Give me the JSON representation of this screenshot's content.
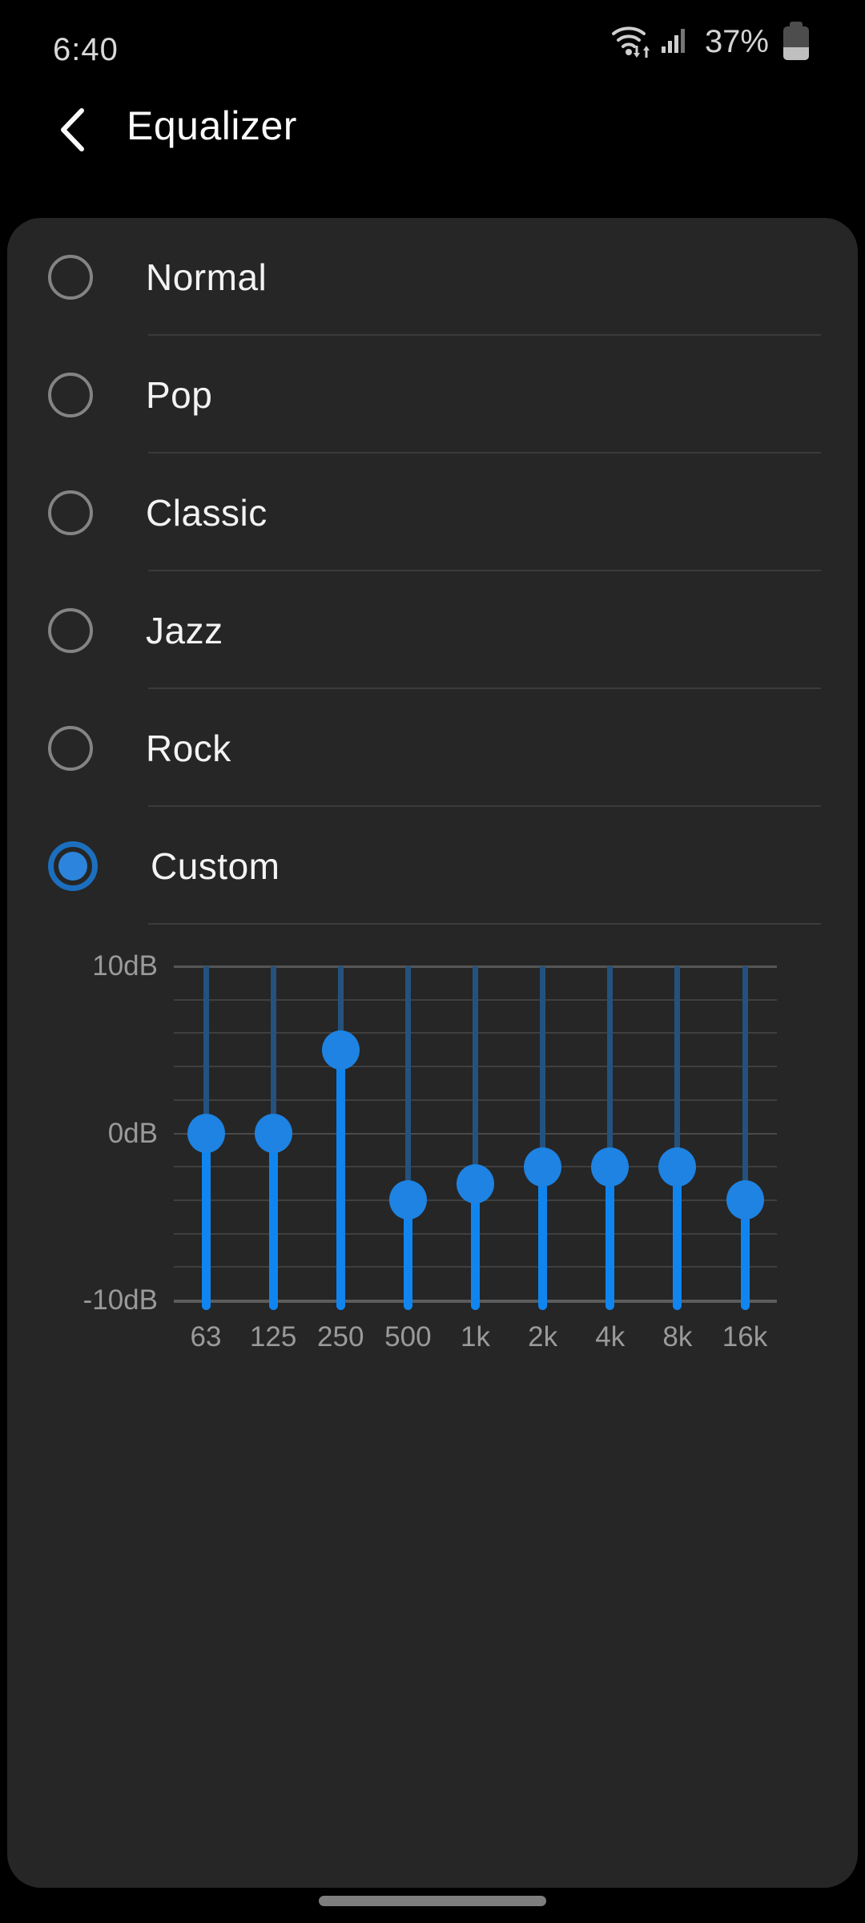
{
  "status_bar": {
    "time": "6:40",
    "battery_text": "37%",
    "battery_level": 0.37,
    "icons": {
      "wifi": "wifi-with-updown-arrows",
      "signal": "cell-signal-bars",
      "battery": "battery-vertical"
    }
  },
  "header": {
    "title": "Equalizer",
    "back_icon": "chevron-left"
  },
  "presets": {
    "items": [
      {
        "label": "Normal",
        "selected": false
      },
      {
        "label": "Pop",
        "selected": false
      },
      {
        "label": "Classic",
        "selected": false
      },
      {
        "label": "Jazz",
        "selected": false
      },
      {
        "label": "Rock",
        "selected": false
      },
      {
        "label": "Custom",
        "selected": true
      }
    ]
  },
  "chart_data": {
    "type": "bar",
    "subtype": "equalizer-vertical-sliders",
    "title": "",
    "categories": [
      "63",
      "125",
      "250",
      "500",
      "1k",
      "2k",
      "4k",
      "8k",
      "16k"
    ],
    "values": [
      0,
      0,
      5,
      -4,
      -3,
      -2,
      -2,
      -2,
      -4
    ],
    "unit": "dB",
    "ylim": [
      -10,
      10
    ],
    "grid_step": 2,
    "grid": "on",
    "legend": "none",
    "y_ticks": [
      {
        "label": "10dB",
        "db": 10
      },
      {
        "label": "0dB",
        "db": 0
      },
      {
        "label": "-10dB",
        "db": -10
      }
    ]
  },
  "colors": {
    "page_bg": "#000000",
    "card_bg": "#262626",
    "accent_blue": "#1085f0",
    "track_dim_blue": "#24527e",
    "knob_blue": "#1e83e2",
    "radio_ring_blue": "#1c6fbe",
    "radio_dot_blue": "#2d84dc",
    "grid_gray": "#3f3f3f",
    "axis_text_gray": "#9a9a9a"
  }
}
